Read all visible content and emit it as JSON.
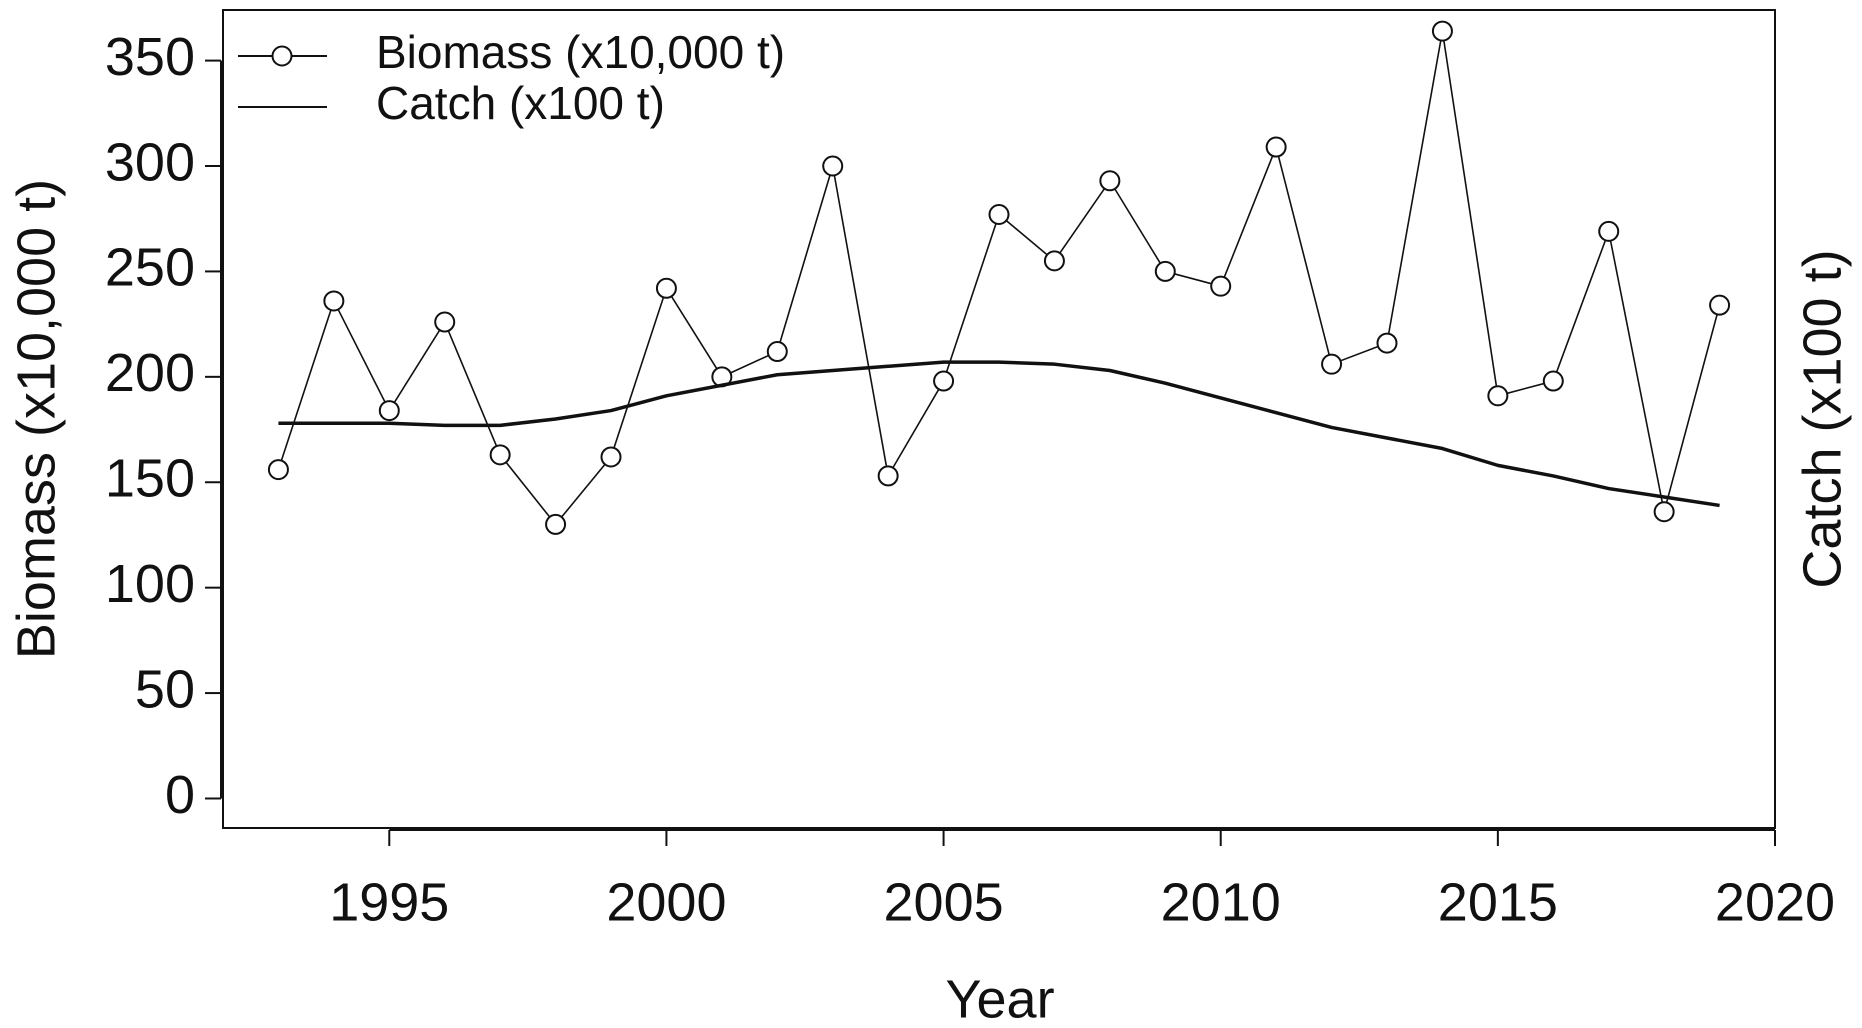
{
  "chart_data": {
    "type": "line",
    "xlabel": "Year",
    "ylabel": "Biomass (x10,000 t)",
    "y2label": "Catch (x100 t)",
    "x": [
      1993,
      1994,
      1995,
      1996,
      1997,
      1998,
      1999,
      2000,
      2001,
      2002,
      2003,
      2004,
      2005,
      2006,
      2007,
      2008,
      2009,
      2010,
      2011,
      2012,
      2013,
      2014,
      2015,
      2016,
      2017,
      2018,
      2019
    ],
    "series": [
      {
        "name": "Biomass (x10,000 t)",
        "color": "#111111",
        "marker": "circle",
        "values": [
          156,
          236,
          184,
          226,
          163,
          130,
          162,
          242,
          200,
          212,
          300,
          153,
          198,
          277,
          255,
          293,
          250,
          243,
          309,
          206,
          216,
          364,
          191,
          198,
          269,
          136,
          234
        ]
      },
      {
        "name": "Catch (x100 t)",
        "color": "#111111",
        "values": [
          178,
          178,
          178,
          177,
          177,
          180,
          184,
          191,
          196,
          201,
          203,
          205,
          207,
          207,
          206,
          203,
          197,
          190,
          183,
          176,
          171,
          166,
          158,
          153,
          147,
          143,
          139
        ]
      }
    ],
    "xlim": [
      1992,
      2020
    ],
    "xticks": [
      1995,
      2000,
      2005,
      2010,
      2015,
      2020
    ],
    "ylim": [
      -14,
      374
    ],
    "yticks": [
      0,
      50,
      100,
      150,
      200,
      250,
      300,
      350
    ],
    "legend": "top-left"
  }
}
